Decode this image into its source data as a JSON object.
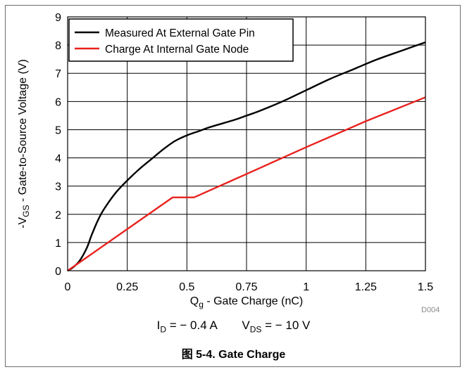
{
  "chart_data": {
    "type": "line",
    "xlabel_main": "Q",
    "xlabel_sub": "g",
    "xlabel_rest": " - Gate Charge (nC)",
    "ylabel_pre": "-V",
    "ylabel_sub": "GS",
    "ylabel_rest": " - Gate-to-Source Voltage (V)",
    "xlim": [
      0,
      1.5
    ],
    "ylim": [
      0,
      9
    ],
    "x_ticks": [
      "0",
      "0.25",
      "0.5",
      "0.75",
      "1",
      "1.25",
      "1.5"
    ],
    "y_ticks": [
      "0",
      "1",
      "2",
      "3",
      "4",
      "5",
      "6",
      "7",
      "8",
      "9"
    ],
    "grid": true,
    "legend_position": "top-left",
    "series": [
      {
        "name": "Measured At External Gate Pin",
        "color": "#000000",
        "x": [
          0,
          0.02,
          0.05,
          0.08,
          0.1,
          0.125,
          0.15,
          0.2,
          0.25,
          0.3,
          0.35,
          0.4,
          0.45,
          0.5,
          0.55,
          0.6,
          0.7,
          0.75,
          0.8,
          0.9,
          1.0,
          1.1,
          1.2,
          1.3,
          1.4,
          1.5
        ],
        "y": [
          0,
          0.1,
          0.35,
          0.8,
          1.25,
          1.75,
          2.15,
          2.75,
          3.2,
          3.6,
          3.95,
          4.3,
          4.6,
          4.8,
          4.95,
          5.1,
          5.35,
          5.5,
          5.65,
          6.0,
          6.4,
          6.8,
          7.15,
          7.5,
          7.8,
          8.1
        ]
      },
      {
        "name": "Charge At Internal Gate Node",
        "color": "#e8211d",
        "x": [
          0,
          0.44,
          0.53,
          0.75,
          1.0,
          1.25,
          1.5
        ],
        "y": [
          0,
          2.6,
          2.6,
          3.43,
          4.38,
          5.3,
          6.15
        ]
      }
    ]
  },
  "code": "D004",
  "conditions": {
    "id_pre": "I",
    "id_sub": "D",
    "id_val": " = − 0.4 A",
    "vds_pre": "V",
    "vds_sub": "DS",
    "vds_val": " = − 10 V"
  },
  "caption": "图 5-4. Gate Charge"
}
